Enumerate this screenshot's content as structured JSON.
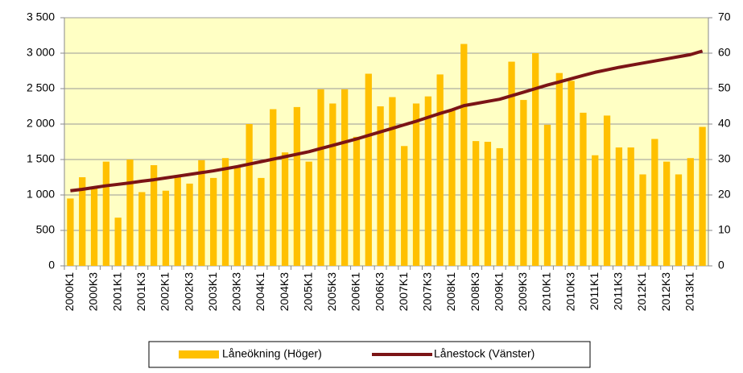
{
  "chart_data": {
    "type": "bar",
    "categories": [
      "2000K1",
      null,
      "2000K3",
      null,
      "2001K1",
      null,
      "2001K3",
      null,
      "2002K1",
      null,
      "2002K3",
      null,
      "2003K1",
      null,
      "2003K3",
      null,
      "2004K1",
      null,
      "2004K3",
      null,
      "2005K1",
      null,
      "2005K3",
      null,
      "2006K1",
      null,
      "2006K3",
      null,
      "2007K1",
      null,
      "2007K3",
      null,
      "2008K1",
      null,
      "2008K3",
      null,
      "2009K1",
      null,
      "2009K3",
      null,
      "2010K1",
      null,
      "2010K3",
      null,
      "2011K1",
      null,
      "2011K3",
      null,
      "2012K1",
      null,
      "2012K3",
      null,
      "2013K1",
      null
    ],
    "series": [
      {
        "name": "Låneökning (Höger)",
        "type": "bar",
        "axis": "y2",
        "color": "#FFC000",
        "values": [
          19,
          25,
          22,
          29.4,
          13.6,
          30,
          20.8,
          28.4,
          21.2,
          25.6,
          23.2,
          29.8,
          24.8,
          30.4,
          28,
          40,
          24.8,
          44.2,
          32,
          44.8,
          29.4,
          49.8,
          45.8,
          49.8,
          36.4,
          54.2,
          45,
          47.6,
          33.8,
          45.8,
          47.8,
          54,
          44,
          62.6,
          35.2,
          35,
          33.2,
          57.6,
          46.8,
          60,
          39.8,
          54.4,
          52.2,
          43.2,
          31.2,
          42.4,
          33.4,
          33.4,
          25.8,
          35.8,
          29.4,
          25.8,
          30.4,
          39.2
        ]
      },
      {
        "name": "Lånestock (Vänster)",
        "type": "line",
        "color": "#7B1416",
        "values": [
          1060,
          1080,
          1105,
          1130,
          1150,
          1170,
          1195,
          1215,
          1240,
          1265,
          1290,
          1315,
          1340,
          1370,
          1400,
          1435,
          1470,
          1505,
          1540,
          1575,
          1610,
          1655,
          1700,
          1745,
          1790,
          1840,
          1890,
          1940,
          1990,
          2040,
          2095,
          2150,
          2200,
          2260,
          2290,
          2320,
          2350,
          2400,
          2450,
          2500,
          2550,
          2595,
          2640,
          2685,
          2730,
          2765,
          2800,
          2830,
          2860,
          2890,
          2920,
          2950,
          2980,
          3030
        ]
      }
    ],
    "ylim": [
      0,
      3500
    ],
    "yticks": [
      0,
      500,
      {
        "value": 1000,
        "label": "1 000"
      },
      {
        "value": 1500,
        "label": "1 500"
      },
      {
        "value": 2000,
        "label": "2 000"
      },
      {
        "value": 2500,
        "label": "2 500"
      },
      {
        "value": 3000,
        "label": "3 000"
      },
      {
        "value": 3500,
        "label": "3 500"
      }
    ],
    "y2lim": [
      0,
      70
    ],
    "y2ticks": [
      0,
      10,
      20,
      30,
      40,
      50,
      60,
      70
    ],
    "grid": true,
    "legend": "bottom",
    "background": "#FFFFC4"
  }
}
